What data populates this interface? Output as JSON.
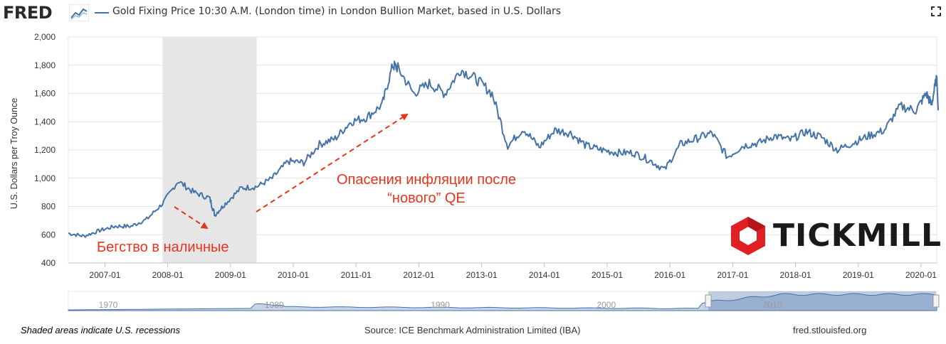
{
  "header": {
    "logo_text": "FRED",
    "series_title": "Gold Fixing Price 10:30 A.M. (London time) in London Bullion Market, based in U.S. Dollars",
    "fullscreen_icon": "expand-icon"
  },
  "colors": {
    "series": "#4572a7",
    "recession_shade": "#e6e6e6",
    "annotation": "#e8341c",
    "navigator_fill": "#c7d3e6",
    "tickmill_red": "#e01e24"
  },
  "annotations": {
    "inflation_line1": "Опасения инфляции после",
    "inflation_line2": "“нового” QE",
    "flight_to_cash": "Бегство в наличные"
  },
  "watermark": {
    "brand": "TICKMILL"
  },
  "chart_data": {
    "type": "line",
    "ylabel": "U.S. Dollars per Troy Ounce",
    "ylim": [
      400,
      2000
    ],
    "yticks": [
      "400",
      "600",
      "800",
      "1,000",
      "1,200",
      "1,400",
      "1,600",
      "1,800",
      "2,000"
    ],
    "xlim": [
      "2006-06",
      "2020-04"
    ],
    "xticks": [
      "2007-01",
      "2008-01",
      "2009-01",
      "2010-01",
      "2011-01",
      "2012-01",
      "2013-01",
      "2014-01",
      "2015-01",
      "2016-01",
      "2017-01",
      "2018-01",
      "2019-01",
      "2020-01"
    ],
    "grid": true,
    "recession": {
      "start": "2007-12",
      "end": "2009-06"
    },
    "series": [
      {
        "name": "Gold Fixing Price 10:30 A.M. (London time) in London Bullion Market, based in U.S. Dollars",
        "x": [
          "2006-06",
          "2006-09",
          "2006-12",
          "2007-03",
          "2007-06",
          "2007-09",
          "2007-12",
          "2008-03",
          "2008-06",
          "2008-09",
          "2008-10",
          "2008-12",
          "2009-03",
          "2009-06",
          "2009-09",
          "2009-12",
          "2010-03",
          "2010-06",
          "2010-09",
          "2010-12",
          "2011-03",
          "2011-06",
          "2011-08",
          "2011-09",
          "2011-12",
          "2012-03",
          "2012-06",
          "2012-09",
          "2012-12",
          "2013-03",
          "2013-06",
          "2013-09",
          "2013-12",
          "2014-03",
          "2014-06",
          "2014-09",
          "2014-12",
          "2015-03",
          "2015-06",
          "2015-09",
          "2015-12",
          "2016-03",
          "2016-06",
          "2016-09",
          "2016-12",
          "2017-03",
          "2017-06",
          "2017-09",
          "2017-12",
          "2018-03",
          "2018-06",
          "2018-09",
          "2018-12",
          "2019-03",
          "2019-06",
          "2019-09",
          "2019-12",
          "2020-02",
          "2020-03",
          "2020-04"
        ],
        "values": [
          610,
          590,
          630,
          660,
          660,
          710,
          820,
          980,
          900,
          860,
          740,
          820,
          930,
          940,
          1000,
          1120,
          1110,
          1240,
          1280,
          1400,
          1430,
          1520,
          1800,
          1780,
          1600,
          1670,
          1600,
          1770,
          1700,
          1600,
          1230,
          1350,
          1220,
          1340,
          1320,
          1230,
          1200,
          1180,
          1180,
          1130,
          1060,
          1240,
          1280,
          1320,
          1150,
          1230,
          1250,
          1300,
          1270,
          1330,
          1290,
          1200,
          1250,
          1300,
          1340,
          1510,
          1480,
          1600,
          1520,
          1720
        ]
      }
    ],
    "navigator": {
      "labels": [
        "1970",
        "1980",
        "1990",
        "2000",
        "2010"
      ]
    }
  },
  "footer": {
    "recession_note": "Shaded areas indicate U.S. recessions",
    "source": "Source: ICE Benchmark Administration Limited (IBA)",
    "site": "fred.stlouisfed.org"
  }
}
